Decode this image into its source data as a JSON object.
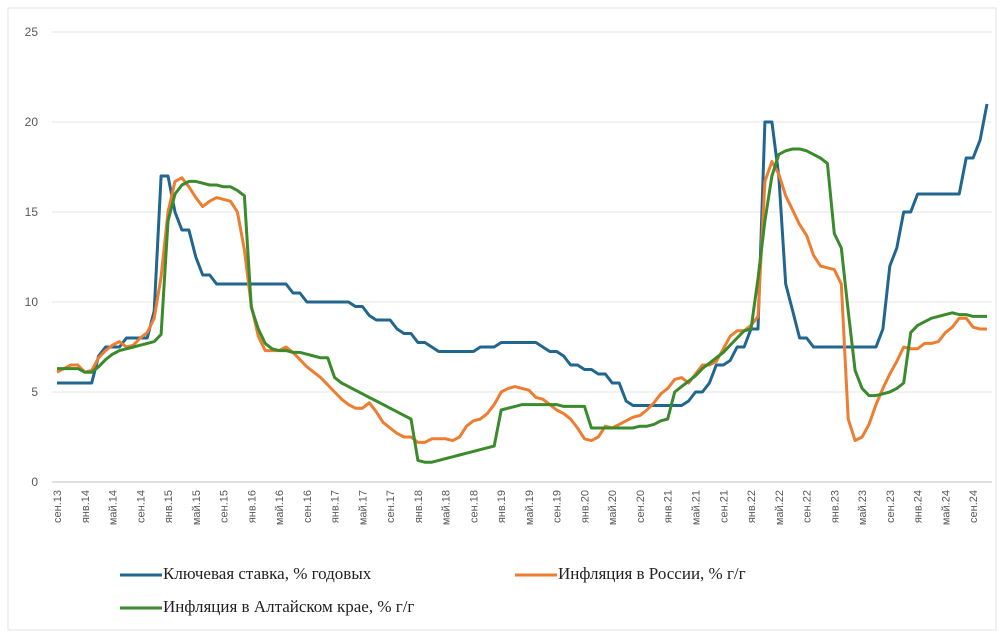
{
  "chart_data": {
    "type": "line",
    "categories": [
      "сен.13",
      null,
      null,
      null,
      "янв.14",
      null,
      null,
      null,
      "май.14",
      null,
      null,
      null,
      "сен.14",
      null,
      null,
      null,
      "янв.15",
      null,
      null,
      null,
      "май.15",
      null,
      null,
      null,
      "сен.15",
      null,
      null,
      null,
      "янв.16",
      null,
      null,
      null,
      "май.16",
      null,
      null,
      null,
      "сен.16",
      null,
      null,
      null,
      "янв.17",
      null,
      null,
      null,
      "май.17",
      null,
      null,
      null,
      "сен.17",
      null,
      null,
      null,
      "янв.18",
      null,
      null,
      null,
      "май.18",
      null,
      null,
      null,
      "сен.18",
      null,
      null,
      null,
      "янв.19",
      null,
      null,
      null,
      "май.19",
      null,
      null,
      null,
      "сен.19",
      null,
      null,
      null,
      "янв.20",
      null,
      null,
      null,
      "май.20",
      null,
      null,
      null,
      "сен.20",
      null,
      null,
      null,
      "янв.21",
      null,
      null,
      null,
      "май.21",
      null,
      null,
      null,
      "сен.21",
      null,
      null,
      null,
      "янв.22",
      null,
      null,
      null,
      "май.22",
      null,
      null,
      null,
      "сен.22",
      null,
      null,
      null,
      "янв.23",
      null,
      null,
      null,
      "май.23",
      null,
      null,
      null,
      "сен.23",
      null,
      null,
      null,
      "янв.24",
      null,
      null,
      null,
      "май.24",
      null,
      null,
      null,
      "сен.24",
      null,
      null
    ],
    "series": [
      {
        "name": "Ключевая ставка, % годовых",
        "color": "#21668e",
        "values": [
          5.5,
          5.5,
          5.5,
          5.5,
          5.5,
          5.5,
          7,
          7.5,
          7.5,
          7.5,
          8,
          8,
          8,
          8,
          9.5,
          17,
          17,
          15,
          14,
          14,
          12.5,
          11.5,
          11.5,
          11,
          11,
          11,
          11,
          11,
          11,
          11,
          11,
          11,
          11,
          11,
          10.5,
          10.5,
          10,
          10,
          10,
          10,
          10,
          10,
          10,
          9.75,
          9.75,
          9.25,
          9,
          9,
          9,
          8.5,
          8.25,
          8.25,
          7.75,
          7.75,
          7.5,
          7.25,
          7.25,
          7.25,
          7.25,
          7.25,
          7.25,
          7.5,
          7.5,
          7.5,
          7.75,
          7.75,
          7.75,
          7.75,
          7.75,
          7.75,
          7.5,
          7.25,
          7.25,
          7,
          6.5,
          6.5,
          6.25,
          6.25,
          6,
          6,
          5.5,
          5.5,
          4.5,
          4.25,
          4.25,
          4.25,
          4.25,
          4.25,
          4.25,
          4.25,
          4.25,
          4.5,
          5,
          5,
          5.5,
          6.5,
          6.5,
          6.75,
          7.5,
          7.5,
          8.5,
          8.5,
          20,
          20,
          17,
          11,
          9.5,
          8,
          8,
          7.5,
          7.5,
          7.5,
          7.5,
          7.5,
          7.5,
          7.5,
          7.5,
          7.5,
          7.5,
          8.5,
          12,
          13,
          15,
          15,
          16,
          16,
          16,
          16,
          16,
          16,
          16,
          18,
          18,
          19,
          21
        ]
      },
      {
        "name": "Инфляция в России, % г/г",
        "color": "#ed7d31",
        "values": [
          6.1,
          6.3,
          6.5,
          6.5,
          6.1,
          6.2,
          6.9,
          7.3,
          7.6,
          7.8,
          7.5,
          7.6,
          8,
          8.3,
          9.1,
          11.4,
          15,
          16.7,
          16.9,
          16.4,
          15.8,
          15.3,
          15.6,
          15.8,
          15.7,
          15.6,
          15,
          12.9,
          9.8,
          8.1,
          7.3,
          7.3,
          7.3,
          7.5,
          7.2,
          6.8,
          6.4,
          6.1,
          5.8,
          5.4,
          5,
          4.6,
          4.3,
          4.1,
          4.1,
          4.4,
          3.9,
          3.3,
          3,
          2.7,
          2.5,
          2.5,
          2.2,
          2.2,
          2.4,
          2.4,
          2.4,
          2.3,
          2.5,
          3.1,
          3.4,
          3.5,
          3.8,
          4.3,
          5,
          5.2,
          5.3,
          5.2,
          5.1,
          4.7,
          4.6,
          4.3,
          4,
          3.8,
          3.5,
          3,
          2.4,
          2.3,
          2.5,
          3.1,
          3,
          3.2,
          3.4,
          3.6,
          3.7,
          4,
          4.4,
          4.9,
          5.2,
          5.7,
          5.8,
          5.5,
          6,
          6.5,
          6.5,
          6.7,
          7.4,
          8.1,
          8.4,
          8.4,
          8.7,
          9.2,
          16.7,
          17.8,
          17.1,
          15.9,
          15.1,
          14.3,
          13.7,
          12.6,
          12,
          11.9,
          11.8,
          11,
          3.5,
          2.3,
          2.5,
          3.2,
          4.3,
          5.2,
          6,
          6.7,
          7.5,
          7.4,
          7.4,
          7.7,
          7.7,
          7.8,
          8.3,
          8.6,
          9.1,
          9.1,
          8.6,
          8.5,
          8.5
        ]
      },
      {
        "name": "Инфляция в Алтайском крае, % г/г",
        "color": "#3b8a2b",
        "values": [
          6.3,
          6.3,
          6.3,
          6.3,
          6.1,
          6.1,
          6.4,
          6.8,
          7.1,
          7.3,
          7.4,
          7.5,
          7.6,
          7.7,
          7.8,
          8.2,
          14.5,
          16,
          16.5,
          16.7,
          16.7,
          16.6,
          16.5,
          16.5,
          16.4,
          16.4,
          16.2,
          15.9,
          9.7,
          8.5,
          7.7,
          7.4,
          7.3,
          7.3,
          7.2,
          7.2,
          7.1,
          7,
          6.9,
          6.9,
          5.8,
          5.5,
          5.3,
          5.1,
          4.9,
          4.7,
          4.5,
          4.3,
          4.1,
          3.9,
          3.7,
          3.5,
          1.2,
          1.1,
          1.1,
          1.2,
          1.3,
          1.4,
          1.5,
          1.6,
          1.7,
          1.8,
          1.9,
          2,
          4,
          4.1,
          4.2,
          4.3,
          4.3,
          4.3,
          4.3,
          4.3,
          4.3,
          4.2,
          4.2,
          4.2,
          4.2,
          3,
          3,
          3,
          3,
          3,
          3,
          3,
          3.1,
          3.1,
          3.2,
          3.4,
          3.5,
          5,
          5.3,
          5.6,
          5.9,
          6.3,
          6.6,
          6.9,
          7.2,
          7.6,
          8,
          8.4,
          8.5,
          11.3,
          14.5,
          17,
          18.2,
          18.4,
          18.5,
          18.5,
          18.4,
          18.2,
          18,
          17.7,
          13.8,
          13,
          9.5,
          6.2,
          5.2,
          4.8,
          4.8,
          4.9,
          5,
          5.2,
          5.5,
          8.3,
          8.7,
          8.9,
          9.1,
          9.2,
          9.3,
          9.4,
          9.3,
          9.3,
          9.2,
          9.2,
          9.2
        ]
      }
    ],
    "ylim": [
      0,
      25
    ],
    "yticks": [
      0,
      5,
      10,
      15,
      20,
      25
    ],
    "grid": true
  }
}
